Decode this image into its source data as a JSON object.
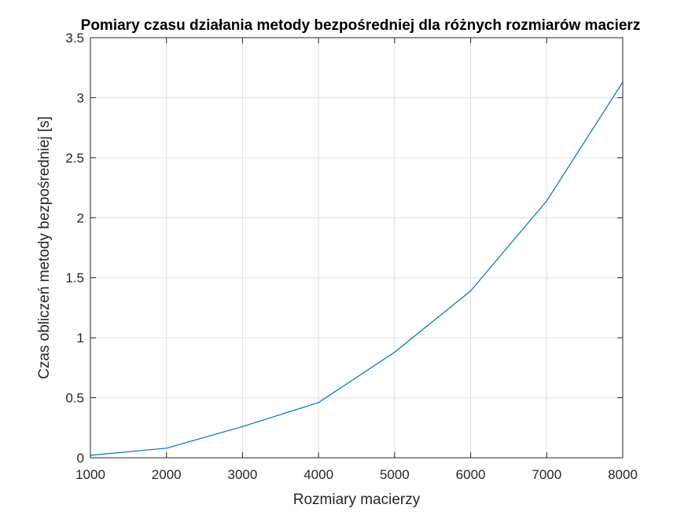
{
  "chart_data": {
    "type": "line",
    "title": "Pomiary czasu działania metody bezpośredniej dla różnych rozmiarów macierz",
    "xlabel": "Rozmiary macierzy",
    "ylabel": "Czas obliczeń metody bezpośredniej [s]",
    "xlim": [
      1000,
      8000
    ],
    "ylim": [
      0,
      3.5
    ],
    "x_ticks": [
      1000,
      2000,
      3000,
      4000,
      5000,
      6000,
      7000,
      8000
    ],
    "y_ticks": [
      0,
      0.5,
      1,
      1.5,
      2,
      2.5,
      3,
      3.5
    ],
    "x_tick_labels": [
      "1000",
      "2000",
      "3000",
      "4000",
      "5000",
      "6000",
      "7000",
      "8000"
    ],
    "y_tick_labels": [
      "0",
      "0.5",
      "1",
      "1.5",
      "2",
      "2.5",
      "3",
      "3.5"
    ],
    "grid": true,
    "series": [
      {
        "color": "#0072bd",
        "x": [
          1000,
          2000,
          3000,
          4000,
          5000,
          6000,
          7000,
          8000
        ],
        "y": [
          0.02,
          0.08,
          0.26,
          0.46,
          0.88,
          1.39,
          2.14,
          3.13
        ]
      }
    ]
  }
}
